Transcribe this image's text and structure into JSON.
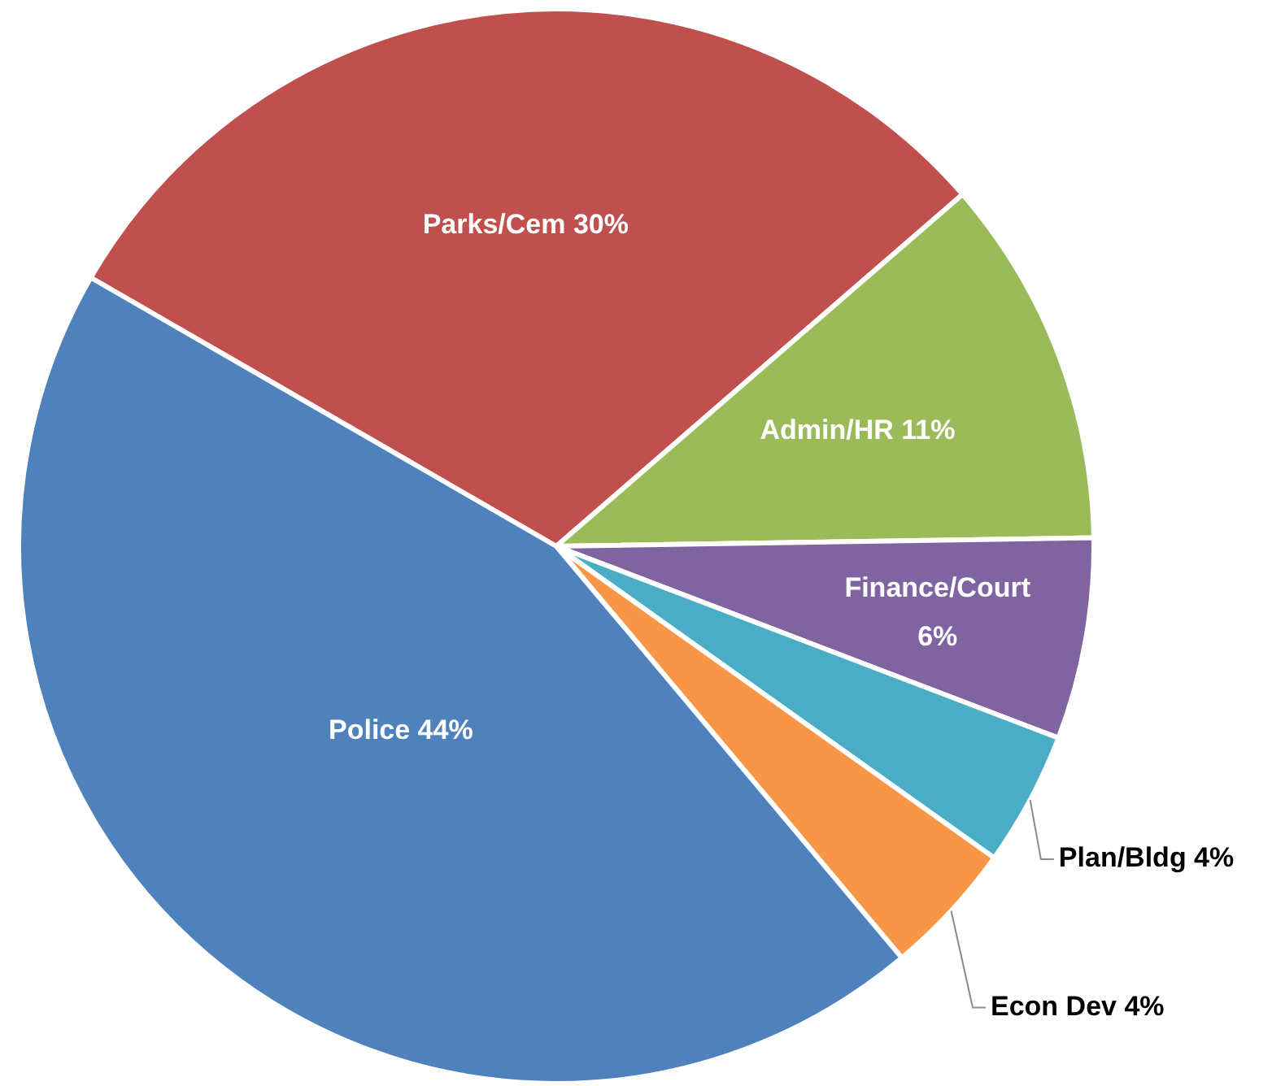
{
  "chart_data": {
    "type": "pie",
    "categories": [
      "Parks/Cem",
      "Admin/HR",
      "Finance/Court",
      "Plan/Bldg",
      "Econ Dev",
      "Police"
    ],
    "values": [
      30,
      11,
      6,
      4,
      4,
      44
    ],
    "colors": [
      "#c0504d",
      "#9bbb59",
      "#8064a2",
      "#4bacc6",
      "#f79646",
      "#4f81bd"
    ],
    "value_labels": [
      "30%",
      "11%",
      "6%",
      "4%",
      "4%",
      "44%"
    ],
    "legend": false
  }
}
